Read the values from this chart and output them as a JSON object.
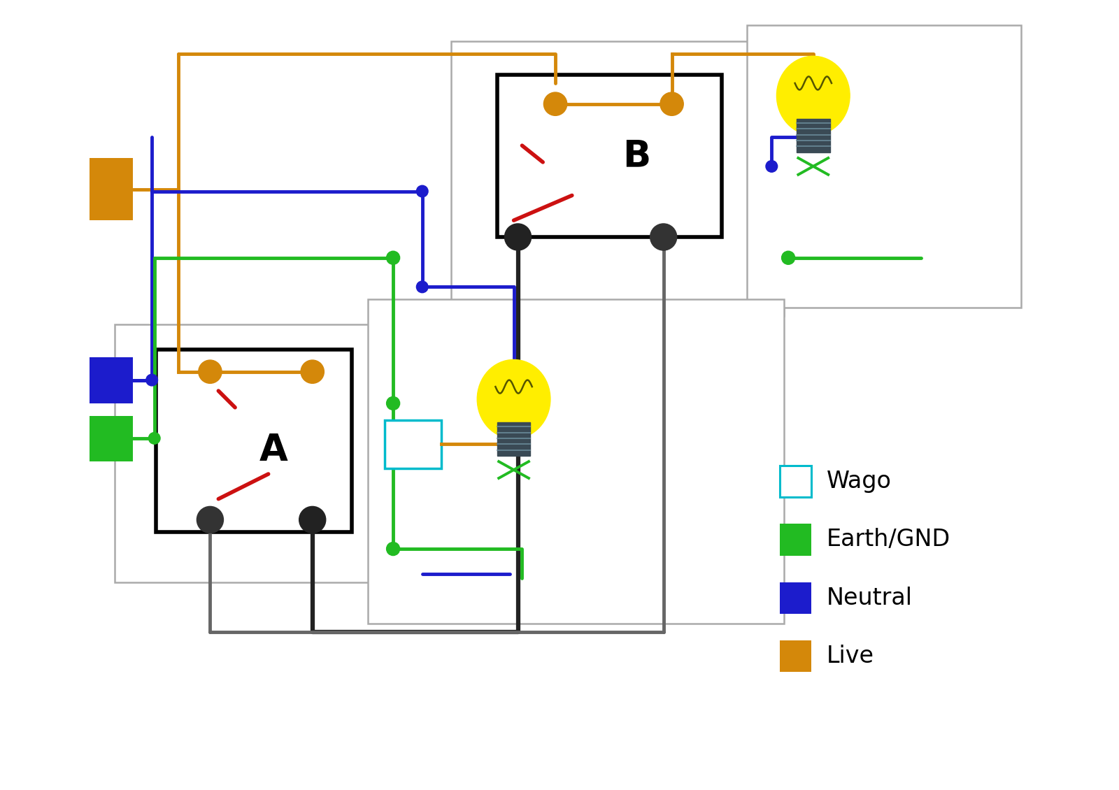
{
  "bg_color": "#ffffff",
  "orange_color": "#D4880A",
  "blue_color": "#1C1CCC",
  "green_color": "#22BB22",
  "red_color": "#CC1111",
  "gray_color": "#666666",
  "dark_color": "#222222",
  "cyan_color": "#00BBCC",
  "yellow_color": "#FFEE00",
  "legend_items": [
    {
      "label": "Wago",
      "color": "#00BBCC",
      "fill": false
    },
    {
      "label": "Earth/GND",
      "color": "#22BB22",
      "fill": true
    },
    {
      "label": "Neutral",
      "color": "#1C1CCC",
      "fill": true
    },
    {
      "label": "Live",
      "color": "#D4880A",
      "fill": true
    }
  ]
}
